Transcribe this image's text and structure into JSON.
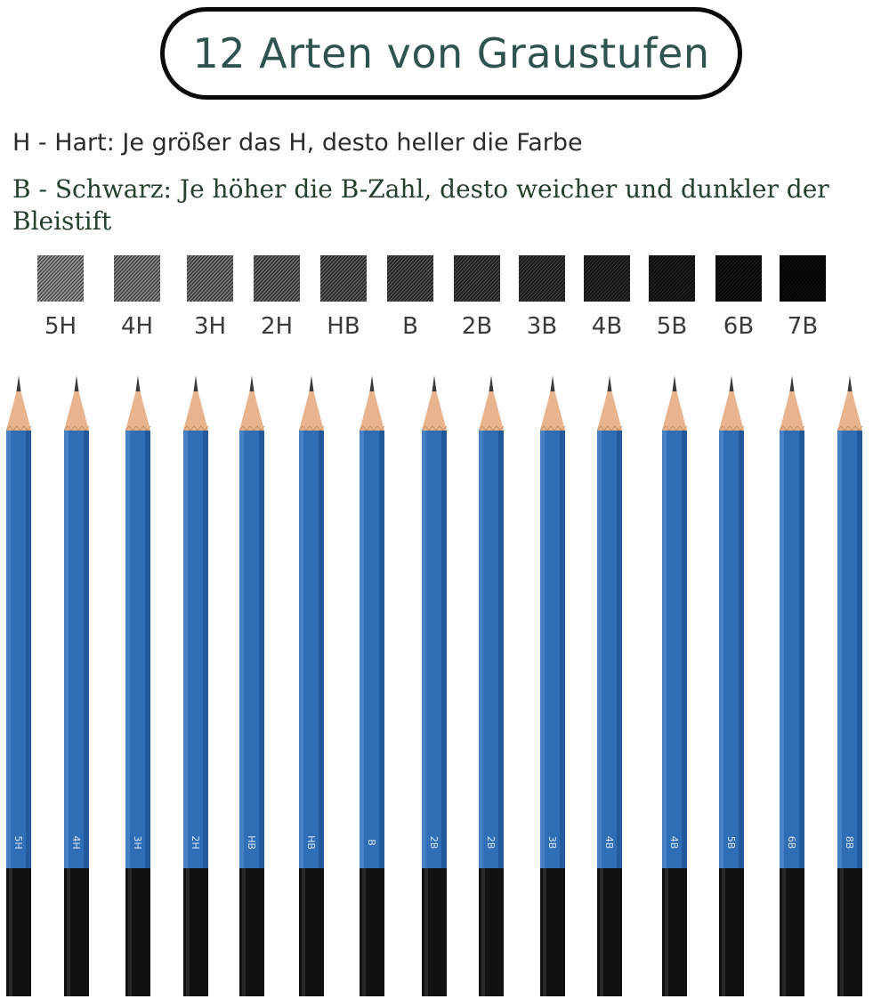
{
  "title": "12 Arten von Graustufen",
  "legend": {
    "hard": "H - Hart: Je größer das H, desto heller die Farbe",
    "soft": "B - Schwarz: Je höher die B-Zahl, desto weicher und dunkler der Bleistift"
  },
  "grades": [
    "5H",
    "4H",
    "3H",
    "2H",
    "HB",
    "B",
    "2B",
    "3B",
    "4B",
    "5B",
    "6B",
    "7B"
  ],
  "pencils": [
    "5H",
    "4H",
    "3H",
    "2H",
    "HB",
    "HB",
    "B",
    "2B",
    "2B",
    "3B",
    "4B",
    "4B",
    "5B",
    "6B",
    "8B"
  ],
  "colors": {
    "title_text": "#2f5450",
    "pencil_body": "#2f6db4",
    "pencil_end": "#111111",
    "wood": "#e8b48e",
    "graphite": "#3a3a3a"
  }
}
